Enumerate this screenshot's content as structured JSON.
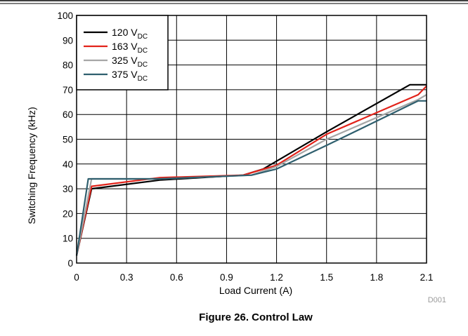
{
  "figure_code": "D001",
  "caption": "Figure 26. Control Law",
  "chart_data": {
    "type": "line",
    "xlabel": "Load Current (A)",
    "ylabel": "Switching Frequency (kHz)",
    "xlim": [
      0,
      2.1
    ],
    "ylim": [
      0,
      100
    ],
    "xticks": [
      "0",
      "0.3",
      "0.6",
      "0.9",
      "1.2",
      "1.5",
      "1.8",
      "2.1"
    ],
    "yticks": [
      "0",
      "10",
      "20",
      "30",
      "40",
      "50",
      "60",
      "70",
      "80",
      "90",
      "100"
    ],
    "grid": true,
    "legend_position": "top-left",
    "series": [
      {
        "name": "120 V",
        "name_sub": "DC",
        "color": "#000000",
        "x": [
          0,
          0.09,
          0.5,
          1.0,
          1.12,
          1.5,
          2.0,
          2.1
        ],
        "y": [
          3,
          30,
          33.5,
          35.5,
          38,
          53,
          72,
          72
        ]
      },
      {
        "name": "163 V",
        "name_sub": "DC",
        "color": "#e2231a",
        "x": [
          0,
          0.09,
          0.5,
          1.0,
          1.2,
          1.5,
          2.05,
          2.1
        ],
        "y": [
          3,
          31,
          34.5,
          35.5,
          39.5,
          52,
          68,
          71.5
        ]
      },
      {
        "name": "325 V",
        "name_sub": "DC",
        "color": "#a6a6a6",
        "x": [
          0,
          0.09,
          0.5,
          1.05,
          1.2,
          1.5,
          2.05,
          2.1
        ],
        "y": [
          3,
          34,
          34,
          35.5,
          39,
          50,
          66,
          68
        ]
      },
      {
        "name": "375 V",
        "name_sub": "DC",
        "color": "#2f5f6e",
        "x": [
          0,
          0.07,
          0.5,
          1.05,
          1.2,
          1.5,
          2.05,
          2.1
        ],
        "y": [
          3,
          34,
          34,
          35.5,
          38,
          47.5,
          65.5,
          65.5
        ]
      }
    ]
  }
}
